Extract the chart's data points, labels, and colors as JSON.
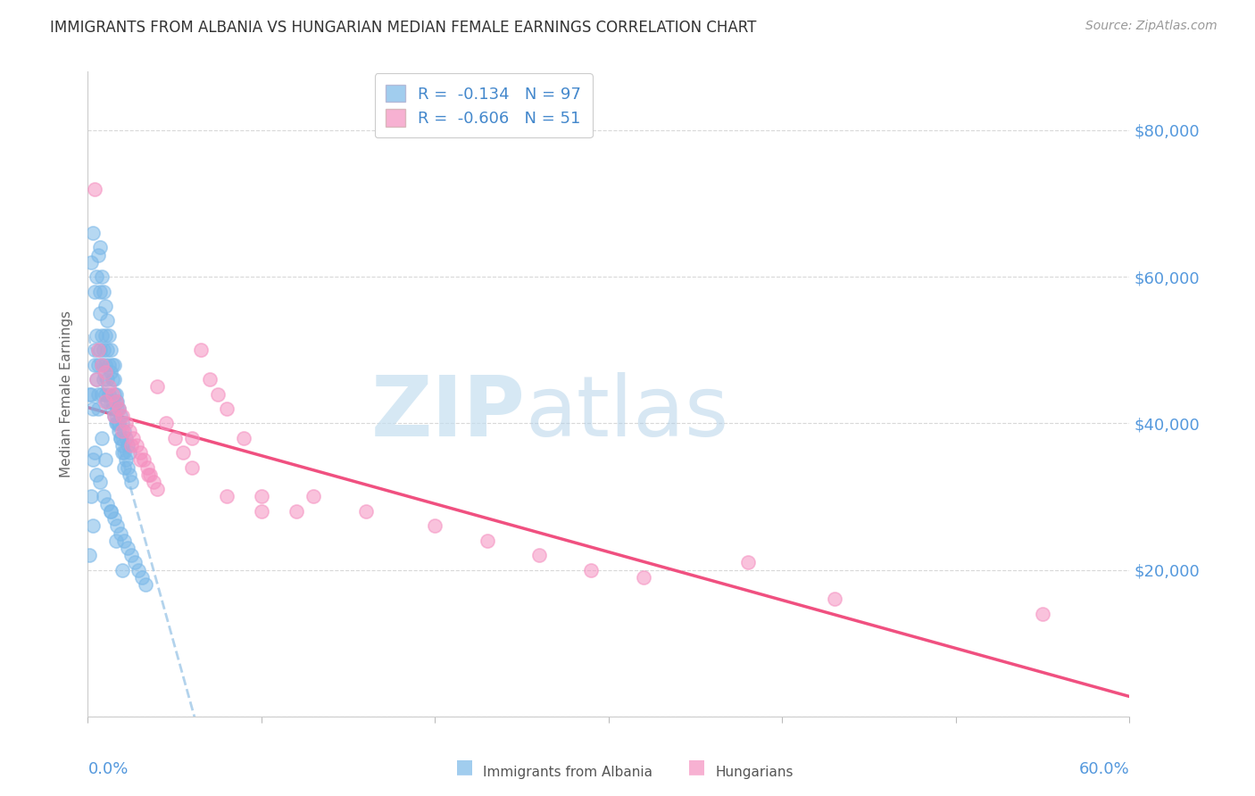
{
  "title": "IMMIGRANTS FROM ALBANIA VS HUNGARIAN MEDIAN FEMALE EARNINGS CORRELATION CHART",
  "source": "Source: ZipAtlas.com",
  "ylabel": "Median Female Earnings",
  "yticks": [
    0,
    20000,
    40000,
    60000,
    80000
  ],
  "ytick_labels_right": [
    "",
    "$20,000",
    "$40,000",
    "$60,000",
    "$80,000"
  ],
  "xlim": [
    0.0,
    0.6
  ],
  "ylim": [
    5000,
    88000
  ],
  "legend_r1": "R =  -0.134   N = 97",
  "legend_r2": "R =  -0.606   N = 51",
  "color_blue": "#7ab8e8",
  "color_pink": "#f590c0",
  "color_trendline_blue": "#a0c8e8",
  "color_trendline_pink": "#f05080",
  "watermark_zip": "ZIP",
  "watermark_atlas": "atlas",
  "background": "#ffffff",
  "grid_color": "#d8d8d8",
  "blue_x": [
    0.002,
    0.003,
    0.004,
    0.004,
    0.005,
    0.005,
    0.006,
    0.006,
    0.007,
    0.007,
    0.007,
    0.008,
    0.008,
    0.008,
    0.009,
    0.009,
    0.01,
    0.01,
    0.01,
    0.011,
    0.011,
    0.011,
    0.012,
    0.012,
    0.013,
    0.013,
    0.014,
    0.014,
    0.015,
    0.015,
    0.015,
    0.016,
    0.016,
    0.017,
    0.017,
    0.018,
    0.018,
    0.019,
    0.019,
    0.02,
    0.02,
    0.021,
    0.021,
    0.022,
    0.022,
    0.023,
    0.023,
    0.024,
    0.024,
    0.025,
    0.002,
    0.003,
    0.004,
    0.005,
    0.006,
    0.007,
    0.008,
    0.009,
    0.01,
    0.011,
    0.012,
    0.013,
    0.014,
    0.015,
    0.016,
    0.017,
    0.018,
    0.019,
    0.02,
    0.021,
    0.003,
    0.005,
    0.007,
    0.009,
    0.011,
    0.013,
    0.015,
    0.017,
    0.019,
    0.021,
    0.023,
    0.025,
    0.027,
    0.029,
    0.031,
    0.033,
    0.001,
    0.002,
    0.006,
    0.008,
    0.01,
    0.013,
    0.016,
    0.02,
    0.001,
    0.003,
    0.004
  ],
  "blue_y": [
    44000,
    42000,
    48000,
    50000,
    46000,
    52000,
    44000,
    48000,
    50000,
    55000,
    58000,
    44000,
    48000,
    52000,
    46000,
    50000,
    44000,
    48000,
    52000,
    43000,
    46000,
    50000,
    44000,
    48000,
    43000,
    47000,
    42000,
    46000,
    41000,
    44000,
    48000,
    40000,
    43000,
    40000,
    43000,
    39000,
    42000,
    38000,
    41000,
    37000,
    40000,
    36000,
    39000,
    35000,
    38000,
    34000,
    37000,
    33000,
    36000,
    32000,
    62000,
    66000,
    58000,
    60000,
    63000,
    64000,
    60000,
    58000,
    56000,
    54000,
    52000,
    50000,
    48000,
    46000,
    44000,
    42000,
    40000,
    38000,
    36000,
    34000,
    35000,
    33000,
    32000,
    30000,
    29000,
    28000,
    27000,
    26000,
    25000,
    24000,
    23000,
    22000,
    21000,
    20000,
    19000,
    18000,
    44000,
    30000,
    42000,
    38000,
    35000,
    28000,
    24000,
    20000,
    22000,
    26000,
    36000
  ],
  "pink_x": [
    0.004,
    0.006,
    0.008,
    0.01,
    0.012,
    0.014,
    0.016,
    0.018,
    0.02,
    0.022,
    0.024,
    0.026,
    0.028,
    0.03,
    0.032,
    0.034,
    0.036,
    0.038,
    0.04,
    0.045,
    0.05,
    0.055,
    0.06,
    0.065,
    0.07,
    0.075,
    0.08,
    0.09,
    0.1,
    0.12,
    0.005,
    0.01,
    0.015,
    0.02,
    0.025,
    0.03,
    0.035,
    0.04,
    0.06,
    0.08,
    0.1,
    0.13,
    0.16,
    0.2,
    0.23,
    0.26,
    0.29,
    0.32,
    0.38,
    0.43,
    0.55
  ],
  "pink_y": [
    72000,
    50000,
    48000,
    47000,
    45000,
    44000,
    43000,
    42000,
    41000,
    40000,
    39000,
    38000,
    37000,
    36000,
    35000,
    34000,
    33000,
    32000,
    45000,
    40000,
    38000,
    36000,
    34000,
    50000,
    46000,
    44000,
    42000,
    38000,
    30000,
    28000,
    46000,
    43000,
    41000,
    39000,
    37000,
    35000,
    33000,
    31000,
    38000,
    30000,
    28000,
    30000,
    28000,
    26000,
    24000,
    22000,
    20000,
    19000,
    21000,
    16000,
    14000
  ]
}
